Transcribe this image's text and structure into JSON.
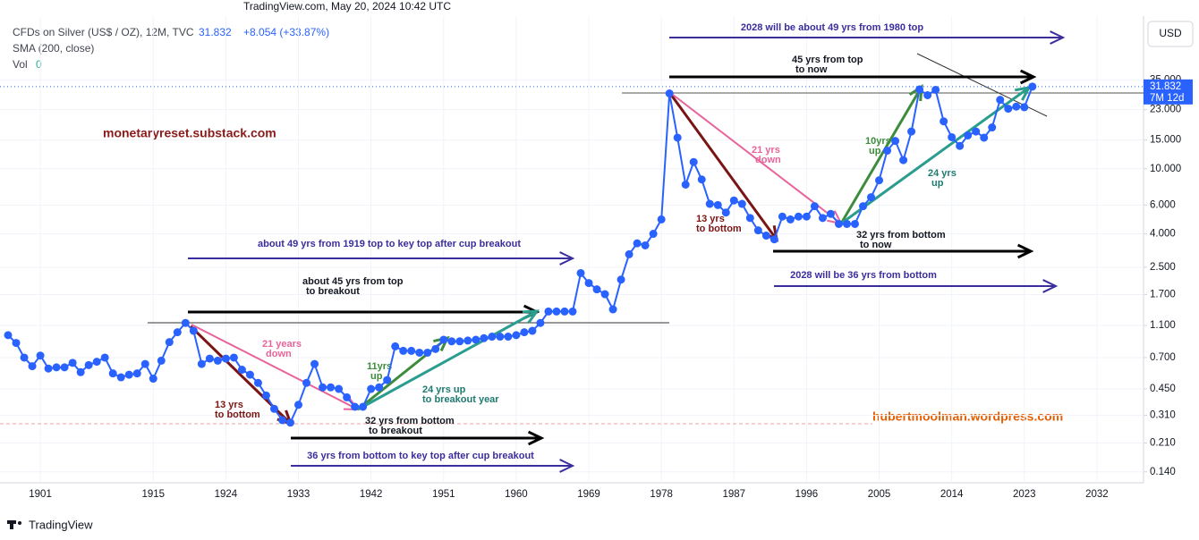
{
  "chart_data": {
    "type": "line",
    "header": "TradingView.com, May 20, 2024 10:42 UTC",
    "title": "CFDs on Silver (US$ / OZ), 12M, TVC",
    "last_value_label": "31.832",
    "change_label": "+8.054 (+33.87%)",
    "indicator": "SMA (200, close)",
    "volume_label": "Vol",
    "volume_value": 0,
    "currency": "USD",
    "price_tag": "31.832",
    "countdown": "7M 12d",
    "footer": "TradingView",
    "watermarks": [
      "monetaryreset.substack.com",
      "hubertmoolman.wordpress.com"
    ],
    "log_scale": true,
    "grid": true,
    "xlim": [
      1896,
      2038
    ],
    "xticks": [
      1901,
      1915,
      1924,
      1933,
      1942,
      1951,
      1960,
      1969,
      1978,
      1987,
      1996,
      2005,
      2014,
      2023,
      2032
    ],
    "ylim": [
      0.12,
      95
    ],
    "yticks": [
      {
        "value": 0.14,
        "label": "0.140"
      },
      {
        "value": 0.21,
        "label": "0.210"
      },
      {
        "value": 0.31,
        "label": "0.310"
      },
      {
        "value": 0.45,
        "label": "0.450"
      },
      {
        "value": 0.7,
        "label": "0.700"
      },
      {
        "value": 1.1,
        "label": "1.100"
      },
      {
        "value": 1.7,
        "label": "1.700"
      },
      {
        "value": 2.5,
        "label": "2.500"
      },
      {
        "value": 4,
        "label": "4.000"
      },
      {
        "value": 6,
        "label": "6.000"
      },
      {
        "value": 10,
        "label": "10.000"
      },
      {
        "value": 15,
        "label": "15.000"
      },
      {
        "value": 23,
        "label": "23.000"
      },
      {
        "value": 35,
        "label": "35.000"
      }
    ],
    "x": [
      1897,
      1898,
      1899,
      1900,
      1901,
      1902,
      1903,
      1904,
      1905,
      1906,
      1907,
      1908,
      1909,
      1910,
      1911,
      1912,
      1913,
      1914,
      1915,
      1916,
      1917,
      1918,
      1919,
      1920,
      1921,
      1922,
      1923,
      1924,
      1925,
      1926,
      1927,
      1928,
      1929,
      1930,
      1931,
      1932,
      1933,
      1934,
      1935,
      1936,
      1937,
      1938,
      1939,
      1940,
      1941,
      1942,
      1943,
      1944,
      1945,
      1946,
      1947,
      1948,
      1949,
      1950,
      1951,
      1952,
      1953,
      1954,
      1955,
      1956,
      1957,
      1958,
      1959,
      1960,
      1961,
      1962,
      1963,
      1964,
      1965,
      1966,
      1967,
      1968,
      1969,
      1970,
      1971,
      1972,
      1973,
      1974,
      1975,
      1976,
      1977,
      1978,
      1979,
      1980,
      1981,
      1982,
      1983,
      1984,
      1985,
      1986,
      1987,
      1988,
      1989,
      1990,
      1991,
      1992,
      1993,
      1994,
      1995,
      1996,
      1997,
      1998,
      1999,
      2000,
      2001,
      2002,
      2003,
      2004,
      2005,
      2006,
      2007,
      2008,
      2009,
      2010,
      2011,
      2012,
      2013,
      2014,
      2015,
      2016,
      2017,
      2018,
      2019,
      2020,
      2021,
      2022,
      2023,
      2024
    ],
    "series": [
      {
        "name": "CFDs on Silver",
        "color": "#2962ff",
        "values": [
          0.96,
          0.86,
          0.7,
          0.62,
          0.72,
          0.6,
          0.61,
          0.61,
          0.65,
          0.57,
          0.63,
          0.66,
          0.7,
          0.56,
          0.53,
          0.55,
          0.56,
          0.64,
          0.52,
          0.67,
          0.87,
          1.0,
          1.14,
          1.02,
          0.64,
          0.69,
          0.67,
          0.69,
          0.7,
          0.59,
          0.55,
          0.49,
          0.41,
          0.34,
          0.29,
          0.28,
          0.36,
          0.49,
          0.64,
          0.46,
          0.46,
          0.45,
          0.4,
          0.35,
          0.35,
          0.45,
          0.46,
          0.51,
          0.82,
          0.77,
          0.77,
          0.75,
          0.75,
          0.79,
          0.9,
          0.88,
          0.88,
          0.89,
          0.9,
          0.92,
          0.94,
          0.94,
          0.94,
          0.96,
          1.0,
          1.02,
          1.14,
          1.34,
          1.34,
          1.34,
          1.34,
          2.3,
          2.0,
          1.83,
          1.71,
          1.38,
          2.1,
          3.0,
          3.5,
          3.4,
          4.0,
          4.9,
          28.9,
          15.5,
          8.0,
          11.0,
          8.6,
          6.1,
          6.0,
          5.4,
          6.4,
          6.1,
          5.0,
          4.2,
          3.9,
          3.7,
          5.1,
          4.9,
          5.1,
          5.1,
          5.9,
          5.0,
          5.3,
          4.6,
          4.6,
          4.6,
          5.9,
          6.7,
          8.5,
          12.9,
          14.8,
          11.3,
          16.9,
          30.6,
          28.2,
          30.4,
          19.5,
          15.6,
          13.8,
          16.0,
          16.9,
          15.5,
          17.9,
          26.4,
          23.3,
          24.0,
          23.8,
          31.832
        ]
      }
    ],
    "annotations": [
      {
        "lines": [
          "2028 will be about 49 yrs  from 1980 top"
        ],
        "color": "#3a2d9e"
      },
      {
        "lines": [
          "45 yrs from top",
          "to now"
        ],
        "color": "#131722"
      },
      {
        "lines": [
          "21 yrs",
          "down"
        ],
        "color": "#e8649a"
      },
      {
        "lines": [
          "10yrs",
          "up"
        ],
        "color": "#3c8c3c"
      },
      {
        "lines": [
          "24 yrs",
          "up"
        ],
        "color": "#1f7a70"
      },
      {
        "lines": [
          "13 yrs",
          "to bottom"
        ],
        "color": "#7a1515"
      },
      {
        "lines": [
          "32 yrs from bottom",
          "to now"
        ],
        "color": "#131722"
      },
      {
        "lines": [
          "2028 will be 36 yrs from bottom"
        ],
        "color": "#3a2d9e"
      },
      {
        "lines": [
          "about 49 yrs from 1919 top to key top after cup breakout"
        ],
        "color": "#3a2d9e"
      },
      {
        "lines": [
          "about 45 yrs from top",
          "to breakout"
        ],
        "color": "#131722"
      },
      {
        "lines": [
          "21 years",
          "down"
        ],
        "color": "#e8649a"
      },
      {
        "lines": [
          "11yrs",
          "up"
        ],
        "color": "#3c8c3c"
      },
      {
        "lines": [
          "24 yrs up",
          "to breakout year"
        ],
        "color": "#1f7a70"
      },
      {
        "lines": [
          "13 yrs",
          "to bottom"
        ],
        "color": "#7a1515"
      },
      {
        "lines": [
          "32 yrs from bottom",
          "to breakout"
        ],
        "color": "#131722"
      },
      {
        "lines": [
          "36 yrs from bottom to key top after cup breakout"
        ],
        "color": "#3a2d9e"
      }
    ]
  }
}
